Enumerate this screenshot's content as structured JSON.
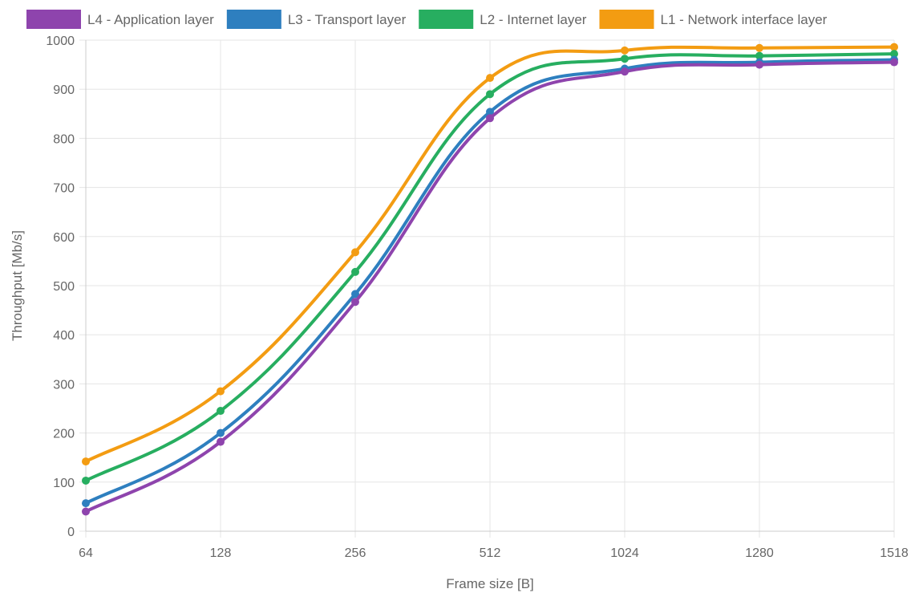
{
  "chart_data": {
    "type": "line",
    "categories": [
      "64",
      "128",
      "256",
      "512",
      "1024",
      "1280",
      "1518"
    ],
    "xlabel": "Frame size [B]",
    "ylabel": "Throughput [Mb/s]",
    "ylim": [
      0,
      1000
    ],
    "yticks": [
      0,
      100,
      200,
      300,
      400,
      500,
      600,
      700,
      800,
      900,
      1000
    ],
    "grid": true,
    "legend_position": "top",
    "series": [
      {
        "name": "L4 - Application layer",
        "color": "#8e44ad",
        "values": [
          40,
          182,
          467,
          841,
          936,
          950,
          955
        ]
      },
      {
        "name": "L3 - Transport layer",
        "color": "#2e7fbf",
        "values": [
          57,
          200,
          483,
          854,
          942,
          955,
          960
        ]
      },
      {
        "name": "L2 - Internet layer",
        "color": "#27ae60",
        "values": [
          103,
          245,
          528,
          890,
          962,
          968,
          972
        ]
      },
      {
        "name": "L1 - Network interface layer",
        "color": "#f39c12",
        "values": [
          142,
          285,
          568,
          923,
          979,
          984,
          986
        ]
      }
    ]
  }
}
